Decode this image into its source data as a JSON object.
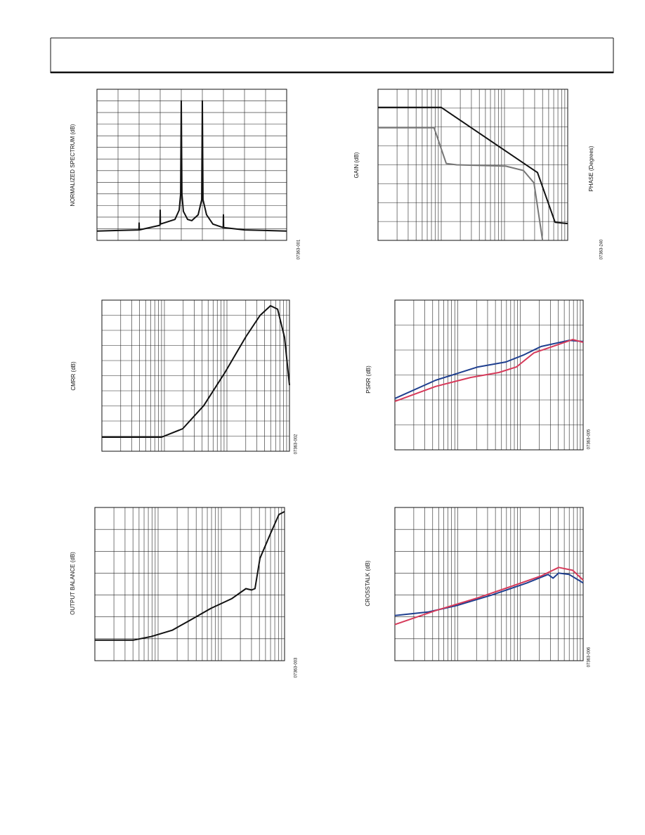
{
  "chart_data": [
    {
      "type": "line",
      "ylabel": "NORMALIZED SPECTRUM (dB)",
      "code": "07363-001",
      "xscale": "linear",
      "grid": true,
      "xlim": [
        0,
        9
      ],
      "xticks": [
        0,
        1,
        2,
        3,
        4,
        5,
        6,
        7,
        8,
        9
      ],
      "ylim": [
        0,
        13
      ],
      "yticks": [
        0,
        1,
        2,
        3,
        4,
        5,
        6,
        7,
        8,
        9,
        10,
        11,
        12,
        13
      ],
      "series": [
        {
          "color": "#111111",
          "x": [
            0,
            1,
            1.99,
            2,
            2.01,
            2.99,
            3,
            3.01,
            3.7,
            3.9,
            3.97,
            4,
            4.03,
            4.1,
            4.3,
            4.5,
            4.8,
            4.97,
            5,
            5.03,
            5.2,
            5.5,
            5.99,
            6,
            6.01,
            7,
            8,
            9
          ],
          "values": [
            0.8,
            0.85,
            0.9,
            1.5,
            0.9,
            1.3,
            2.6,
            1.4,
            1.8,
            2.6,
            4,
            12,
            4,
            2.5,
            1.8,
            1.7,
            2.2,
            3.5,
            12,
            3.5,
            2.2,
            1.4,
            1.1,
            2.2,
            1.1,
            0.9,
            0.85,
            0.8
          ]
        }
      ]
    },
    {
      "type": "line",
      "ylabel": "GAIN (dB)",
      "y2label": "PHASE (Degrees)",
      "code": "07363-240",
      "xscale": "log",
      "grid": true,
      "xlim": [
        1,
        1000
      ],
      "xticks": [
        1,
        2,
        3,
        4,
        5,
        6,
        7,
        8,
        9,
        10,
        20,
        30,
        40,
        50,
        60,
        70,
        80,
        90,
        100,
        200,
        300,
        400,
        500,
        600,
        700,
        800,
        900,
        1000
      ],
      "ylim": [
        0,
        8
      ],
      "yticks": [
        0,
        1,
        2,
        3,
        4,
        5,
        6,
        7,
        8
      ],
      "series": [
        {
          "color": "#111111",
          "x": [
            1,
            10,
            333,
            631,
            1000
          ],
          "values": [
            7.04,
            7.04,
            3.59,
            0.96,
            0.89
          ]
        },
        {
          "color": "#777777",
          "x": [
            1,
            7.7,
            12,
            17.5,
            105,
            200,
            293,
            400
          ],
          "values": [
            5.96,
            5.96,
            4.07,
            4.0,
            3.93,
            3.7,
            3.04,
            0
          ]
        }
      ]
    },
    {
      "type": "line",
      "ylabel": "CMRR (dB)",
      "code": "07363-002",
      "xscale": "log",
      "grid": true,
      "xlim": [
        1,
        1000
      ],
      "xticks": [
        1,
        2,
        3,
        4,
        5,
        6,
        7,
        8,
        9,
        10,
        20,
        30,
        40,
        50,
        60,
        70,
        80,
        90,
        100,
        200,
        300,
        400,
        500,
        600,
        700,
        800,
        900,
        1000
      ],
      "ylim": [
        0,
        10
      ],
      "yticks": [
        0,
        1,
        2,
        3,
        4,
        5,
        6,
        7,
        8,
        9,
        10
      ],
      "series": [
        {
          "color": "#111111",
          "x": [
            1,
            9,
            19.6,
            42.6,
            92.5,
            201,
            337,
            497,
            645,
            834,
            1000
          ],
          "values": [
            0.93,
            0.93,
            1.49,
            3.02,
            5.2,
            7.58,
            8.98,
            9.63,
            9.4,
            7.53,
            4.37
          ]
        }
      ]
    },
    {
      "type": "line",
      "ylabel": "PSRR (dB)",
      "code": "07363-005",
      "xscale": "log",
      "grid": true,
      "xlim": [
        1,
        1000
      ],
      "xticks": [
        1,
        2,
        3,
        4,
        5,
        6,
        7,
        8,
        9,
        10,
        20,
        30,
        40,
        50,
        60,
        70,
        80,
        90,
        100,
        200,
        300,
        400,
        500,
        600,
        700,
        800,
        900,
        1000
      ],
      "ylim": [
        0,
        6
      ],
      "yticks": [
        0,
        1,
        2,
        3,
        4,
        5,
        6
      ],
      "series": [
        {
          "color": "#1f3f8f",
          "x": [
            1,
            4.46,
            21,
            58.7,
            112,
            213,
            598,
            1000
          ],
          "values": [
            2.06,
            2.79,
            3.32,
            3.52,
            3.8,
            4.14,
            4.39,
            4.34
          ]
        },
        {
          "color": "#d63a5a",
          "x": [
            1,
            4.46,
            16.2,
            45.4,
            86.5,
            165,
            276,
            681,
            1000
          ],
          "values": [
            1.94,
            2.54,
            2.9,
            3.1,
            3.32,
            3.89,
            4.08,
            4.42,
            4.31
          ]
        }
      ]
    },
    {
      "type": "line",
      "ylabel": "OUTPUT BALANCE (dB)",
      "code": "07363-003",
      "xscale": "log",
      "grid": true,
      "xlim": [
        1,
        1000
      ],
      "xticks": [
        1,
        2,
        3,
        4,
        5,
        6,
        7,
        8,
        9,
        10,
        20,
        30,
        40,
        50,
        60,
        70,
        80,
        90,
        100,
        200,
        300,
        400,
        500,
        600,
        700,
        800,
        900,
        1000
      ],
      "ylim": [
        0,
        7
      ],
      "yticks": [
        0,
        1,
        2,
        3,
        4,
        5,
        6,
        7
      ],
      "series": [
        {
          "color": "#111111",
          "x": [
            1,
            4.08,
            7.74,
            16.7,
            31.6,
            68.1,
            147,
            245,
            300,
            341,
            408,
            599,
            815,
            1000
          ],
          "values": [
            0.94,
            0.94,
            1.1,
            1.39,
            1.84,
            2.39,
            2.84,
            3.29,
            3.23,
            3.29,
            4.68,
            5.81,
            6.68,
            6.81
          ]
        }
      ]
    },
    {
      "type": "line",
      "ylabel": "CROSSTALK (dB)",
      "code": "07363-006",
      "xscale": "log",
      "grid": true,
      "xlim": [
        1,
        1000
      ],
      "xticks": [
        1,
        2,
        3,
        4,
        5,
        6,
        7,
        8,
        9,
        10,
        20,
        30,
        40,
        50,
        60,
        70,
        80,
        90,
        100,
        200,
        300,
        400,
        500,
        600,
        700,
        800,
        900,
        1000
      ],
      "ylim": [
        0,
        7
      ],
      "yticks": [
        0,
        1,
        2,
        3,
        4,
        5,
        6,
        7
      ],
      "series": [
        {
          "color": "#1f3f8f",
          "x": [
            1,
            3.45,
            9.67,
            35.1,
            127,
            276,
            331,
            407,
            598,
            1000
          ],
          "values": [
            2.06,
            2.23,
            2.52,
            3.0,
            3.55,
            3.94,
            3.77,
            4.0,
            3.94,
            3.55
          ]
        },
        {
          "color": "#d63a5a",
          "x": [
            1,
            4.46,
            21,
            76,
            213,
            407,
            681,
            1000
          ],
          "values": [
            1.65,
            2.29,
            2.87,
            3.42,
            3.87,
            4.26,
            4.13,
            3.68
          ]
        }
      ]
    }
  ]
}
